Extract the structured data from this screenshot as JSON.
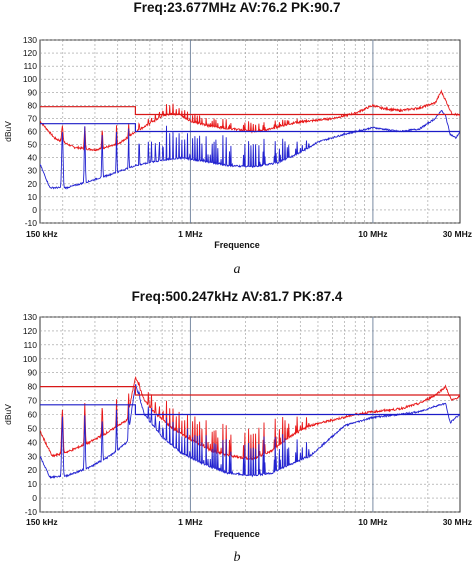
{
  "chart_data": [
    {
      "type": "line",
      "title": "Freq:23.677MHz  AV:76.2  PK:90.7",
      "caption": "a",
      "xlabel": "Frequence",
      "ylabel": "dBuV",
      "x_scale": "log",
      "xlim_hz": [
        150000,
        30000000
      ],
      "ylim": [
        -10,
        130
      ],
      "yticks": [
        "-10",
        "0",
        "10",
        "20",
        "30",
        "40",
        "50",
        "60",
        "70",
        "80",
        "90",
        "100",
        "110",
        "120",
        "130"
      ],
      "xticks": [
        {
          "label": "150 kHz",
          "hz": 150000
        },
        {
          "label": "1 MHz",
          "hz": 1000000
        },
        {
          "label": "10 MHz",
          "hz": 10000000
        },
        {
          "label": "30 MHz",
          "hz": 30000000
        }
      ],
      "grid": true,
      "colors": {
        "peak": "#e8191a",
        "average": "#2323d0",
        "limit_peak": "#d81818",
        "limit_average": "#1c1cc8"
      },
      "limits": {
        "peak": [
          [
            150000,
            79
          ],
          [
            500000,
            79
          ],
          [
            500000,
            73
          ],
          [
            30000000,
            73
          ]
        ],
        "average": [
          [
            150000,
            66
          ],
          [
            500000,
            66
          ],
          [
            500000,
            60
          ],
          [
            30000000,
            60
          ]
        ]
      },
      "series": [
        {
          "role": "peak",
          "points": [
            [
              150000,
              68
            ],
            [
              180000,
              55
            ],
            [
              230000,
              48
            ],
            [
              300000,
              46
            ],
            [
              400000,
              50
            ],
            [
              500000,
              60
            ],
            [
              600000,
              66
            ],
            [
              700000,
              72
            ],
            [
              800000,
              74
            ],
            [
              900000,
              72
            ],
            [
              1000000,
              68
            ],
            [
              1300000,
              64
            ],
            [
              1700000,
              62
            ],
            [
              2200000,
              60
            ],
            [
              2800000,
              62
            ],
            [
              3500000,
              66
            ],
            [
              4500000,
              68
            ],
            [
              6000000,
              70
            ],
            [
              8000000,
              74
            ],
            [
              10000000,
              80
            ],
            [
              11000000,
              78
            ],
            [
              14000000,
              76
            ],
            [
              18000000,
              78
            ],
            [
              22000000,
              82
            ],
            [
              23677000,
              90.7
            ],
            [
              25000000,
              84
            ],
            [
              27000000,
              74
            ],
            [
              30000000,
              72
            ]
          ],
          "envelope_peaks": [
            [
              160000,
              67
            ],
            [
              195000,
              66
            ],
            [
              240000,
              66
            ],
            [
              300000,
              66
            ],
            [
              380000,
              66
            ],
            [
              480000,
              68
            ],
            [
              600000,
              72
            ],
            [
              700000,
              80
            ],
            [
              780000,
              84
            ],
            [
              820000,
              82
            ],
            [
              900000,
              80
            ],
            [
              1000000,
              76
            ],
            [
              1200000,
              72
            ],
            [
              1500000,
              70
            ],
            [
              2000000,
              70
            ],
            [
              2500000,
              68
            ],
            [
              3000000,
              70
            ],
            [
              3800000,
              72
            ],
            [
              4500000,
              70
            ]
          ]
        },
        {
          "role": "average",
          "points": [
            [
              150000,
              35
            ],
            [
              170000,
              17
            ],
            [
              210000,
              17
            ],
            [
              280000,
              22
            ],
            [
              380000,
              28
            ],
            [
              500000,
              34
            ],
            [
              700000,
              38
            ],
            [
              900000,
              40
            ],
            [
              1200000,
              37
            ],
            [
              1600000,
              34
            ],
            [
              2200000,
              33
            ],
            [
              3000000,
              36
            ],
            [
              4000000,
              44
            ],
            [
              5000000,
              52
            ],
            [
              7000000,
              58
            ],
            [
              10000000,
              63
            ],
            [
              14000000,
              60
            ],
            [
              18000000,
              62
            ],
            [
              22000000,
              70
            ],
            [
              23677000,
              76.2
            ],
            [
              25000000,
              72
            ],
            [
              26500000,
              58
            ],
            [
              28500000,
              55
            ],
            [
              30000000,
              60
            ]
          ],
          "envelope_peaks": [
            [
              160000,
              66
            ],
            [
              195000,
              66
            ],
            [
              240000,
              66
            ],
            [
              300000,
              65
            ],
            [
              380000,
              64
            ],
            [
              480000,
              64
            ],
            [
              600000,
              62
            ],
            [
              700000,
              65
            ],
            [
              800000,
              66
            ],
            [
              1000000,
              62
            ],
            [
              1300000,
              60
            ],
            [
              1800000,
              58
            ],
            [
              2400000,
              57
            ],
            [
              3200000,
              58
            ],
            [
              4000000,
              58
            ]
          ]
        }
      ]
    },
    {
      "type": "line",
      "title": "Freq:500.247kHz  AV:81.7  PK:87.4",
      "caption": "b",
      "xlabel": "Frequence",
      "ylabel": "dBuV",
      "x_scale": "log",
      "xlim_hz": [
        150000,
        30000000
      ],
      "ylim": [
        -10,
        130
      ],
      "yticks": [
        "-10",
        "0",
        "10",
        "20",
        "30",
        "40",
        "50",
        "60",
        "70",
        "80",
        "90",
        "100",
        "110",
        "120",
        "130"
      ],
      "xticks": [
        {
          "label": "150 kHz",
          "hz": 150000
        },
        {
          "label": "1 MHz",
          "hz": 1000000
        },
        {
          "label": "10 MHz",
          "hz": 10000000
        },
        {
          "label": "30 MHz",
          "hz": 30000000
        }
      ],
      "grid": true,
      "colors": {
        "peak": "#e8191a",
        "average": "#2323d0",
        "limit_peak": "#d81818",
        "limit_average": "#1c1cc8"
      },
      "limits": {
        "peak": [
          [
            150000,
            80
          ],
          [
            500000,
            80
          ],
          [
            500000,
            74
          ],
          [
            30000000,
            74
          ]
        ],
        "average": [
          [
            150000,
            67
          ],
          [
            500000,
            67
          ],
          [
            500000,
            60
          ],
          [
            30000000,
            60
          ]
        ]
      },
      "series": [
        {
          "role": "peak",
          "points": [
            [
              150000,
              48
            ],
            [
              175000,
              30
            ],
            [
              220000,
              34
            ],
            [
              280000,
              40
            ],
            [
              360000,
              48
            ],
            [
              450000,
              56
            ],
            [
              500247,
              87.4
            ],
            [
              560000,
              70
            ],
            [
              650000,
              60
            ],
            [
              800000,
              50
            ],
            [
              1000000,
              42
            ],
            [
              1300000,
              34
            ],
            [
              1700000,
              30
            ],
            [
              2200000,
              28
            ],
            [
              2800000,
              34
            ],
            [
              3500000,
              44
            ],
            [
              4500000,
              52
            ],
            [
              6000000,
              56
            ],
            [
              8000000,
              60
            ],
            [
              10000000,
              62
            ],
            [
              14000000,
              64
            ],
            [
              18000000,
              68
            ],
            [
              22000000,
              74
            ],
            [
              25000000,
              80
            ],
            [
              27000000,
              70
            ],
            [
              30000000,
              73
            ]
          ],
          "envelope_peaks": [
            [
              160000,
              70
            ],
            [
              195000,
              70
            ],
            [
              240000,
              70
            ],
            [
              300000,
              70
            ],
            [
              380000,
              72
            ],
            [
              450000,
              76
            ],
            [
              520000,
              84
            ],
            [
              600000,
              80
            ],
            [
              700000,
              72
            ],
            [
              850000,
              66
            ],
            [
              1000000,
              62
            ],
            [
              1300000,
              56
            ],
            [
              1700000,
              54
            ],
            [
              2200000,
              56
            ],
            [
              2800000,
              60
            ],
            [
              3500000,
              62
            ]
          ]
        },
        {
          "role": "average",
          "points": [
            [
              150000,
              30
            ],
            [
              170000,
              15
            ],
            [
              210000,
              16
            ],
            [
              280000,
              22
            ],
            [
              360000,
              30
            ],
            [
              450000,
              40
            ],
            [
              500247,
              81.7
            ],
            [
              560000,
              60
            ],
            [
              700000,
              44
            ],
            [
              900000,
              32
            ],
            [
              1200000,
              24
            ],
            [
              1600000,
              18
            ],
            [
              2200000,
              16
            ],
            [
              2800000,
              18
            ],
            [
              3500000,
              24
            ],
            [
              4500000,
              30
            ],
            [
              5500000,
              40
            ],
            [
              7000000,
              52
            ],
            [
              10000000,
              58
            ],
            [
              14000000,
              60
            ],
            [
              18000000,
              62
            ],
            [
              22000000,
              66
            ],
            [
              25000000,
              68
            ],
            [
              26500000,
              54
            ],
            [
              28500000,
              58
            ],
            [
              30000000,
              60
            ]
          ],
          "envelope_peaks": [
            [
              160000,
              62
            ],
            [
              195000,
              64
            ],
            [
              240000,
              64
            ],
            [
              300000,
              64
            ],
            [
              380000,
              66
            ],
            [
              450000,
              70
            ],
            [
              520000,
              78
            ],
            [
              600000,
              70
            ],
            [
              700000,
              62
            ],
            [
              850000,
              56
            ],
            [
              1000000,
              52
            ],
            [
              1300000,
              46
            ],
            [
              1700000,
              44
            ],
            [
              2200000,
              46
            ],
            [
              2800000,
              50
            ],
            [
              3500000,
              50
            ]
          ]
        }
      ]
    }
  ]
}
